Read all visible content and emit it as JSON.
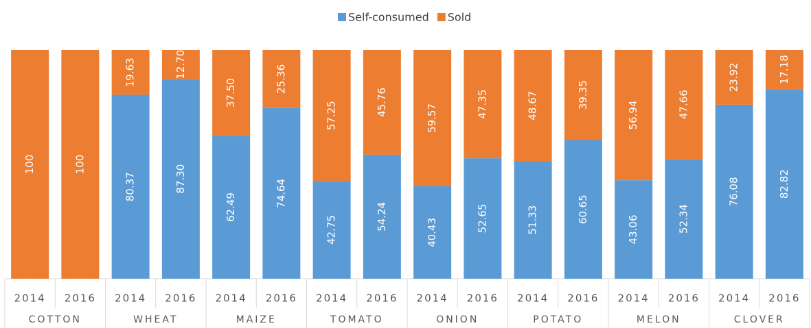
{
  "chart_data": {
    "type": "stacked_bar",
    "categories": [
      "2014",
      "2016",
      "2014",
      "2016",
      "2014",
      "2016",
      "2014",
      "2016",
      "2014",
      "2016",
      "2014",
      "2016",
      "2014",
      "2016",
      "2014",
      "2016"
    ],
    "groups": [
      "COTTON",
      "WHEAT",
      "MAIZE",
      "TOMATO",
      "ONION",
      "POTATO",
      "MELON",
      "CLOVER"
    ],
    "series": [
      {
        "name": "Self-consumed",
        "color": "#5b9bd5",
        "values": [
          0,
          0,
          80.37,
          87.3,
          62.49,
          74.64,
          42.75,
          54.24,
          40.43,
          52.65,
          51.33,
          60.65,
          43.06,
          52.34,
          76.08,
          82.82
        ],
        "value_labels": [
          "0",
          "0",
          "80.37",
          "87.30",
          "62.49",
          "74.64",
          "42.75",
          "54.24",
          "40.43",
          "52.65",
          "51.33",
          "60.65",
          "43.06",
          "52.34",
          "76.08",
          "82.82"
        ]
      },
      {
        "name": "Sold",
        "color": "#ed7d31",
        "values": [
          100,
          100,
          19.63,
          12.7,
          37.5,
          25.36,
          57.25,
          45.76,
          59.57,
          47.35,
          48.67,
          39.35,
          56.94,
          47.66,
          23.92,
          17.18
        ],
        "value_labels": [
          "100",
          "100",
          "19.63",
          "12.70",
          "37.50",
          "25.36",
          "57.25",
          "45.76",
          "59.57",
          "47.35",
          "48.67",
          "39.35",
          "56.94",
          "47.66",
          "23.92",
          "17.18"
        ]
      }
    ],
    "ylim": [
      0,
      100
    ],
    "legend": "top"
  }
}
